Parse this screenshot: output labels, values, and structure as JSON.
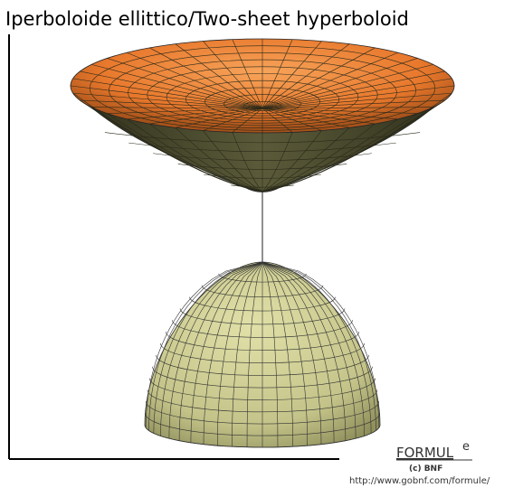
{
  "title": "Iperboloide ellittico/Two-sheet hyperboloid",
  "logo": {
    "name": "FORMUL",
    "superscript": "e",
    "credit": "(c) BNF",
    "url": "http://www.gobnf.com/formule/"
  }
}
